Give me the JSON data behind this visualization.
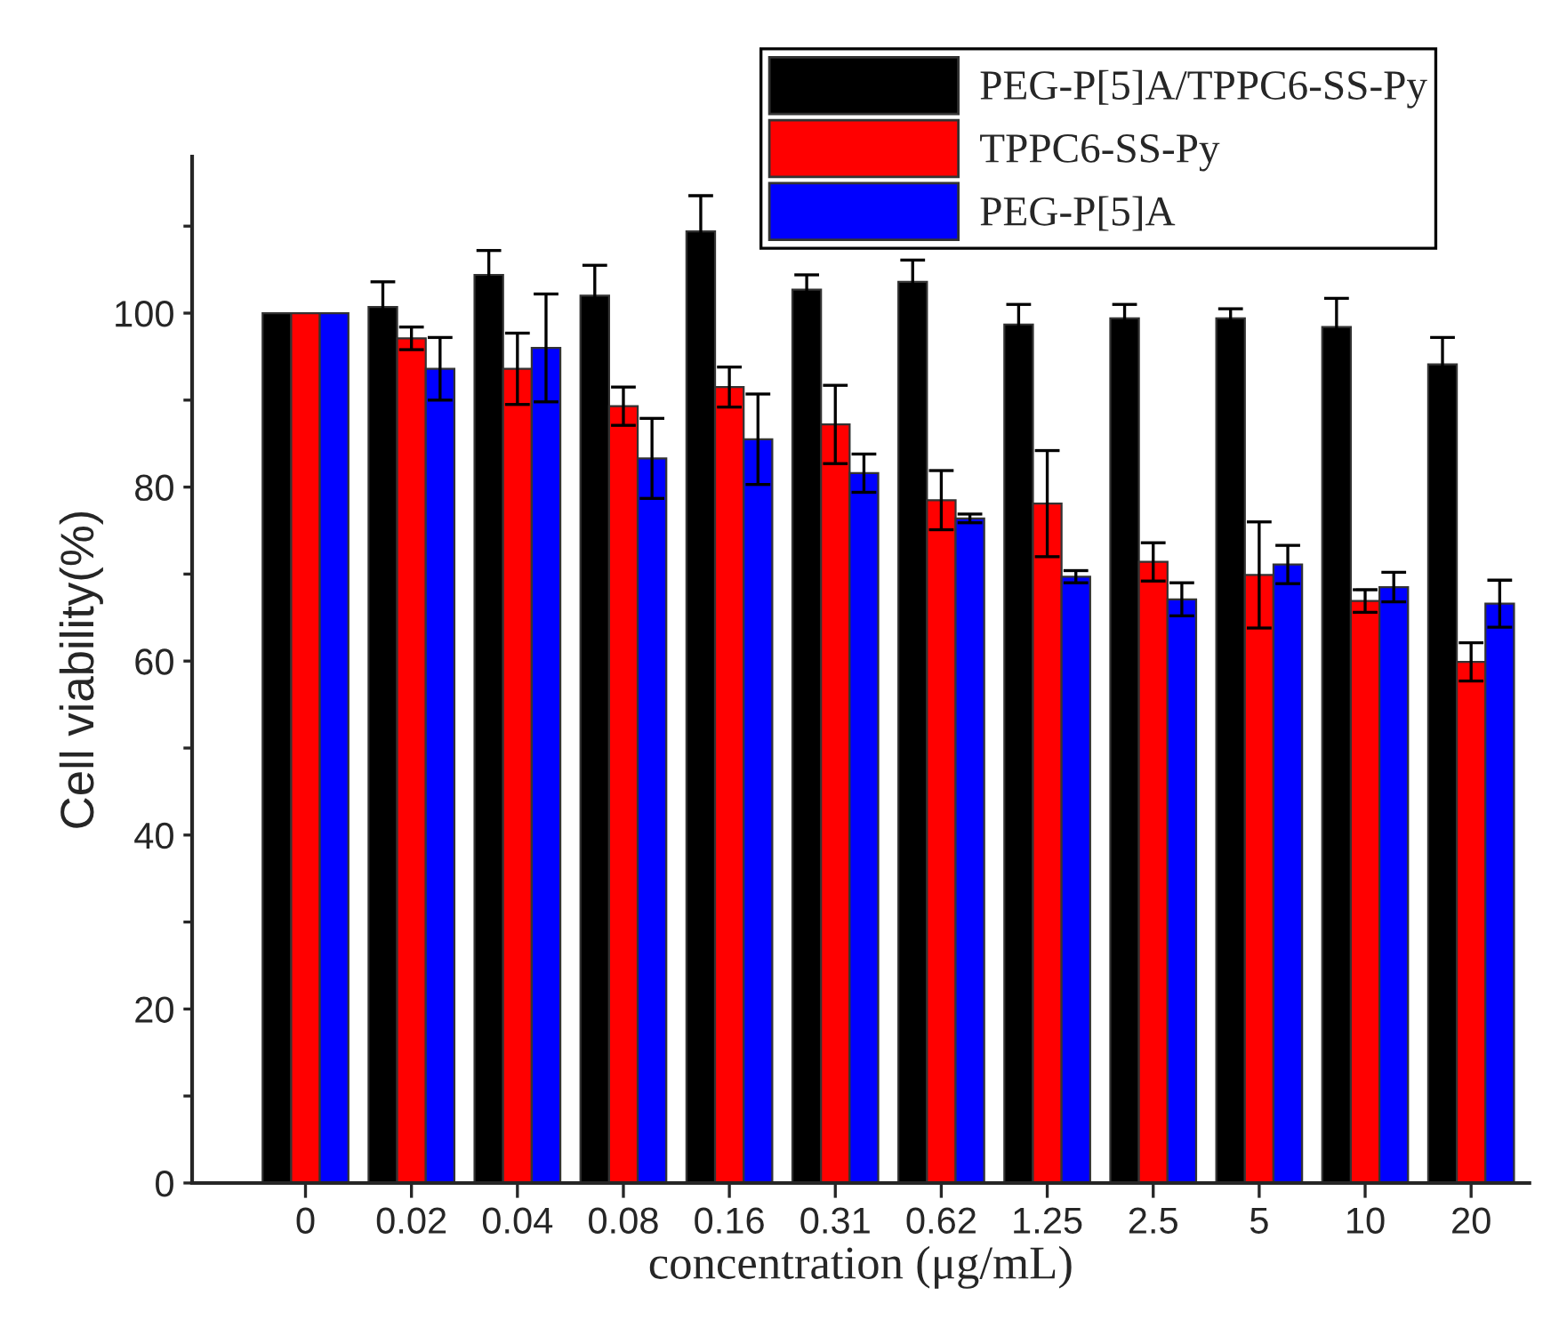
{
  "chart_data": {
    "type": "bar",
    "xlabel": "concentration (μg/mL)",
    "ylabel": "Cell viability(%)",
    "categories": [
      "0",
      "0.02",
      "0.04",
      "0.08",
      "0.16",
      "0.31",
      "0.62",
      "1.25",
      "2.5",
      "5",
      "10",
      "20"
    ],
    "series": [
      {
        "name": "PEG-P[5]A/TPPC6-SS-Py",
        "color": "#000000",
        "values": [
          100,
          100.7,
          104.4,
          102.0,
          109.4,
          102.7,
          103.6,
          98.7,
          99.4,
          99.4,
          98.4,
          94.1
        ],
        "errors": [
          null,
          2.9,
          2.8,
          3.5,
          4.1,
          1.7,
          2.5,
          2.3,
          1.6,
          1.1,
          3.3,
          3.1
        ]
      },
      {
        "name": "TPPC6-SS-Py",
        "color": "#ff0000",
        "values": [
          100,
          97.1,
          93.6,
          89.3,
          91.5,
          87.2,
          78.5,
          78.1,
          71.4,
          69.9,
          66.9,
          59.9
        ],
        "errors": [
          null,
          1.3,
          4.1,
          2.2,
          2.3,
          4.5,
          3.4,
          6.1,
          2.2,
          6.1,
          1.3,
          2.2
        ]
      },
      {
        "name": "PEG-P[5]A",
        "color": "#0000ff",
        "values": [
          100,
          93.6,
          96.0,
          83.3,
          85.5,
          81.6,
          76.4,
          69.7,
          67.1,
          71.1,
          68.5,
          66.6
        ],
        "errors": [
          null,
          3.6,
          6.2,
          4.6,
          5.2,
          2.2,
          0.5,
          0.7,
          1.9,
          2.2,
          1.7,
          2.7
        ]
      }
    ],
    "ylim": [
      0,
      118
    ],
    "yticks": [
      0,
      {
        "value": 10,
        "label": null
      },
      20,
      {
        "value": 30,
        "label": null
      },
      40,
      {
        "value": 50,
        "label": null
      },
      60,
      {
        "value": 70,
        "label": null
      },
      80,
      {
        "value": 90,
        "label": null
      },
      100,
      {
        "value": 110,
        "label": null
      }
    ],
    "legend": "top right",
    "grid": false
  }
}
